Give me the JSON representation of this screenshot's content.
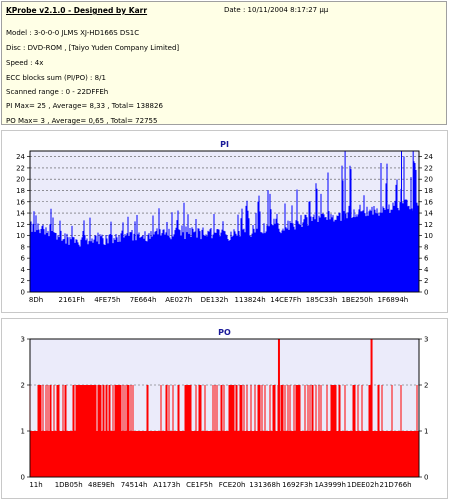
{
  "header": {
    "title": "KProbe v2.1.0 - Designed by Karr",
    "date": "Date : 10/11/2004 8:17:27 μμ",
    "model": "Model : 3-0-0-0 JLMS     XJ-HD166S        DS1C",
    "disc": "Disc : DVD-ROM , [Taiyo Yuden Company Limited]",
    "speed": "Speed : 4x",
    "ecc": "ECC blocks sum (PI/PO) : 8/1",
    "range": "Scanned range : 0 - 22DFFEh",
    "pi_stats": "PI Max= 25 , Average= 8,33 , Total= 138826",
    "po_stats": "PO Max= 3 , Average= 0,65 , Total= 72755"
  },
  "colors": {
    "pi_bars": "#0000ff",
    "po_bars": "#ff0000",
    "plot_bg": "#ebebfa",
    "grid": "#555555"
  },
  "chart_data": [
    {
      "type": "bar",
      "title": "PI",
      "ylim": [
        0,
        25
      ],
      "yticks": [
        0,
        2,
        4,
        6,
        8,
        10,
        12,
        14,
        16,
        18,
        20,
        22,
        24
      ],
      "xtick_labels": [
        "8Dh",
        "2161Fh",
        "4FE75h",
        "7E664h",
        "AE027h",
        "DE132h",
        "113824h",
        "14CE7Fh",
        "185C33h",
        "1BE250h",
        "1F6894h"
      ],
      "grid": true,
      "profile": {
        "positions": [
          0,
          0.05,
          0.1,
          0.15,
          0.2,
          0.25,
          0.3,
          0.35,
          0.4,
          0.45,
          0.5,
          0.55,
          0.6,
          0.65,
          0.7,
          0.75,
          0.8,
          0.85,
          0.9,
          0.95,
          1.0
        ],
        "baseline": [
          11,
          10.5,
          9,
          8.5,
          9,
          9.5,
          9.5,
          10,
          10,
          10,
          9.5,
          10,
          11,
          11,
          12,
          13,
          13,
          14,
          14,
          15,
          15
        ],
        "peaks": [
          17,
          16,
          14,
          13,
          13,
          14,
          14,
          14,
          15,
          14,
          14,
          15,
          17,
          18,
          18,
          20,
          21,
          21,
          22,
          23,
          22
        ]
      },
      "max": 25,
      "average": 8.33
    },
    {
      "type": "bar",
      "title": "PO",
      "ylim": [
        0,
        3
      ],
      "yticks": [
        0,
        1,
        2,
        3
      ],
      "xtick_labels": [
        "11h",
        "1DB05h",
        "48E9Eh",
        "74514h",
        "A1173h",
        "CE1F5h",
        "FCE20h",
        "131368h",
        "1692F3h",
        "1A3999h",
        "1DEE02h",
        "21D766h"
      ],
      "grid": true,
      "baseline": 1,
      "spikes_to_3_at": [
        0.64,
        0.878
      ],
      "max": 3,
      "average": 0.65
    }
  ]
}
